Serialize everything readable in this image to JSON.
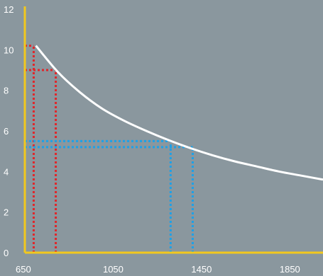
{
  "colors": {
    "background": "#8a979e",
    "axis": "#f2c81e",
    "curve": "#ffffff",
    "guide_red": "#e0262a",
    "guide_blue": "#1da1e8",
    "text": "#ffffff"
  },
  "chart_data": {
    "type": "line",
    "title": "",
    "xlabel": "",
    "ylabel": "",
    "xlim": [
      650,
      2000
    ],
    "ylim": [
      0,
      12
    ],
    "x_ticks": [
      650,
      1050,
      1450,
      1850
    ],
    "y_ticks": [
      0,
      2,
      4,
      6,
      8,
      10,
      12
    ],
    "grid": false,
    "series": [
      {
        "x": [
          700,
          800,
          900,
          1000,
          1100,
          1200,
          1300,
          1400,
          1500,
          1600,
          1700,
          1800,
          1900,
          2000
        ],
        "y": [
          10.2,
          8.9,
          7.9,
          7.1,
          6.5,
          6.0,
          5.55,
          5.15,
          4.8,
          4.5,
          4.25,
          4.0,
          3.8,
          3.6
        ]
      }
    ],
    "guides": [
      {
        "color": "red",
        "x": 690,
        "y": 10.2
      },
      {
        "color": "red",
        "x": 790,
        "y": 9.0
      },
      {
        "color": "blue",
        "x": 1310,
        "y": 5.5
      },
      {
        "color": "blue",
        "x": 1410,
        "y": 5.2
      }
    ]
  }
}
